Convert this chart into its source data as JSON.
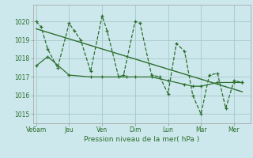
{
  "xlabel": "Pression niveau de la mer( hPa )",
  "background_color": "#cce8ec",
  "grid_color": "#aacccc",
  "line_color": "#2d6e2d",
  "ylim": [
    1014.5,
    1020.9
  ],
  "yticks": [
    1015,
    1016,
    1017,
    1018,
    1019,
    1020
  ],
  "xtick_labels": [
    "Ve6am",
    "Jeu",
    "Ven",
    "Dim",
    "Lun",
    "Mar",
    "Mer"
  ],
  "xtick_positions": [
    0,
    2,
    4,
    6,
    8,
    10,
    12
  ],
  "xlim": [
    -0.2,
    13.0
  ],
  "series1_x": [
    0,
    0.3,
    0.7,
    1.3,
    2.0,
    2.3,
    2.7,
    3.3,
    4.0,
    4.3,
    5.0,
    5.3,
    6.0,
    6.3,
    7.0,
    7.5,
    8.0,
    8.5,
    9.0,
    9.5,
    10.0,
    10.5,
    11.0,
    11.5,
    12.0,
    12.5
  ],
  "series1_y": [
    1020.0,
    1019.7,
    1018.5,
    1017.5,
    1019.9,
    1019.5,
    1019.0,
    1017.3,
    1020.3,
    1019.5,
    1017.0,
    1017.1,
    1020.0,
    1019.9,
    1017.1,
    1017.0,
    1016.1,
    1018.8,
    1018.4,
    1016.0,
    1015.0,
    1017.1,
    1017.2,
    1015.3,
    1016.8,
    1016.7
  ],
  "series2_x": [
    0,
    0.7,
    2.0,
    3.3,
    4.0,
    5.5,
    6.0,
    7.0,
    8.0,
    9.0,
    9.5,
    10.0,
    11.0,
    12.0,
    12.5
  ],
  "series2_y": [
    1017.6,
    1018.1,
    1017.1,
    1017.0,
    1017.0,
    1017.0,
    1017.0,
    1017.0,
    1016.8,
    1016.6,
    1016.5,
    1016.5,
    1016.7,
    1016.7,
    1016.7
  ],
  "trend_x": [
    0,
    12.5
  ],
  "trend_y": [
    1019.6,
    1016.2
  ]
}
